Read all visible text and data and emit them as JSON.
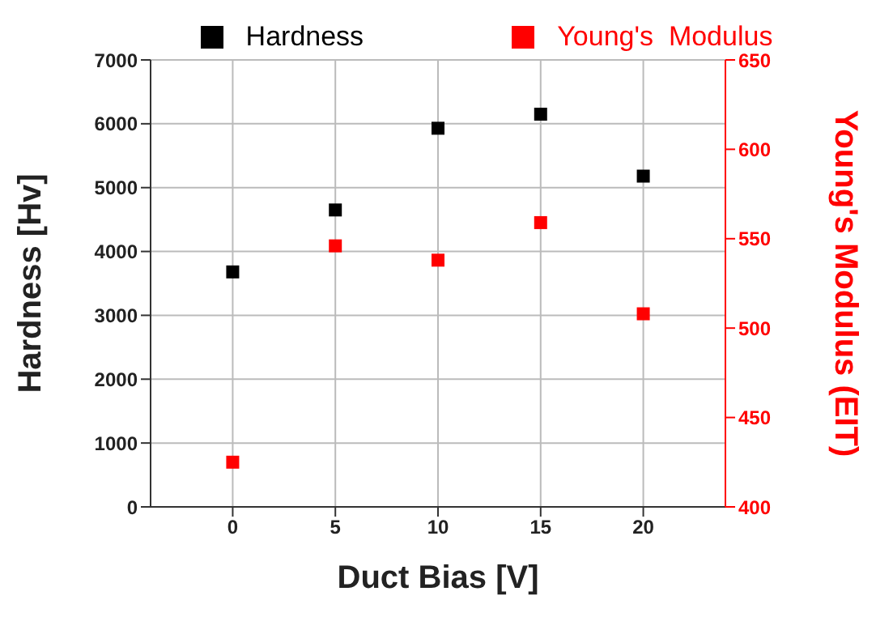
{
  "chart_data": {
    "type": "scatter",
    "xlabel": "Duct Bias [V]",
    "ylabel": "Hardness [Hv]",
    "y2label": "Young's Modulus (EIT)",
    "x": [
      0,
      5,
      10,
      15,
      20
    ],
    "series": [
      {
        "name": "Hardness",
        "color": "#000000",
        "values": [
          3680,
          4650,
          5930,
          6150,
          5180
        ]
      },
      {
        "name": "Young's  Modulus",
        "color": "#ff0000",
        "axis": "y2",
        "values": [
          425,
          546,
          538,
          559,
          508
        ]
      }
    ],
    "xlim": [
      -4,
      24
    ],
    "xticks": [
      0,
      5,
      10,
      15,
      20
    ],
    "ylim": [
      0,
      7000
    ],
    "yticks": [
      0,
      1000,
      2000,
      3000,
      4000,
      5000,
      6000,
      7000
    ],
    "y2lim": [
      400,
      650
    ],
    "y2ticks": [
      400,
      450,
      500,
      550,
      600,
      650
    ],
    "grid": true,
    "legend": "top",
    "marker": "square"
  }
}
